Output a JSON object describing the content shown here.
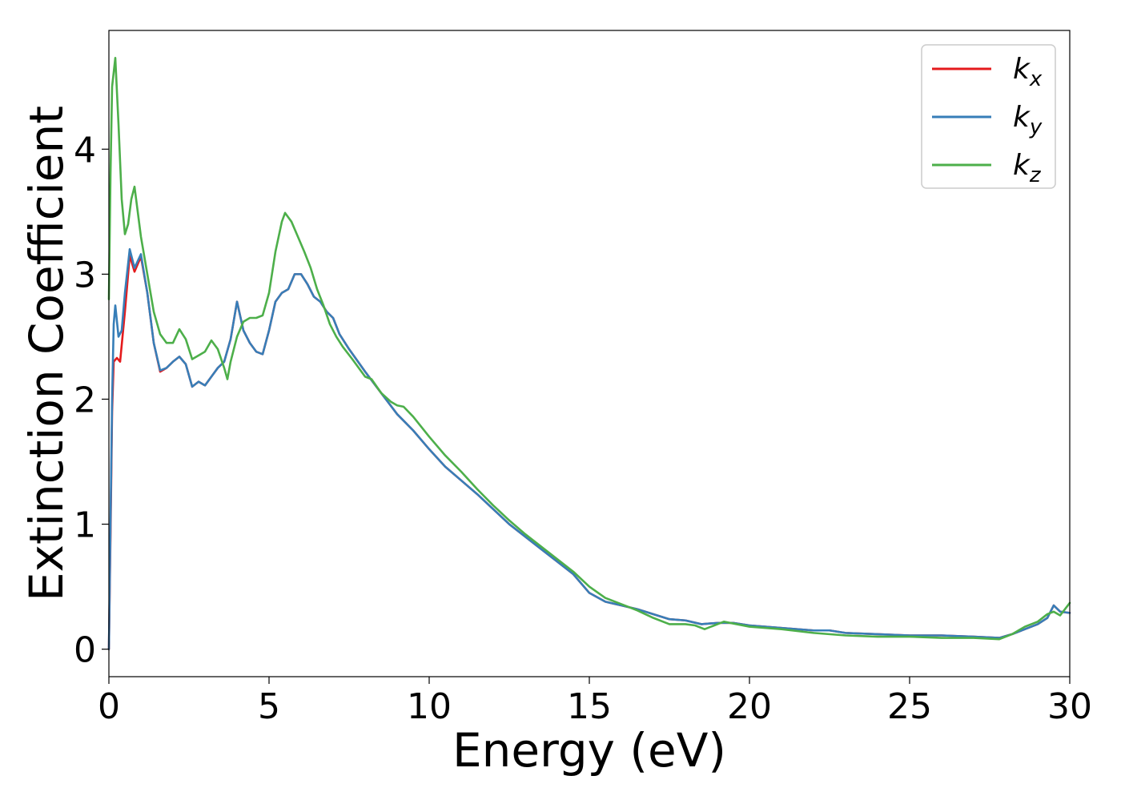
{
  "chart_data": {
    "type": "line",
    "title": "",
    "xlabel": "Energy (eV)",
    "ylabel": "Extinction Coefficient",
    "xlim": [
      0,
      30
    ],
    "ylim": [
      -0.22,
      4.95
    ],
    "xticks": [
      0,
      5,
      10,
      15,
      20,
      25,
      30
    ],
    "xtick_labels": [
      "0",
      "5",
      "10",
      "15",
      "20",
      "25",
      "30"
    ],
    "yticks": [
      0,
      1,
      2,
      3,
      4
    ],
    "ytick_labels": [
      "0",
      "1",
      "2",
      "3",
      "4"
    ],
    "grid": false,
    "legend_placement": "top-right",
    "series": [
      {
        "name": "k_x",
        "label_main": "k",
        "label_sub": "x",
        "color": "#e41a1c",
        "points": [
          [
            0.0,
            0.0
          ],
          [
            0.05,
            0.9
          ],
          [
            0.1,
            1.9
          ],
          [
            0.15,
            2.3
          ],
          [
            0.25,
            2.33
          ],
          [
            0.35,
            2.3
          ],
          [
            0.5,
            2.7
          ],
          [
            0.65,
            3.15
          ],
          [
            0.8,
            3.02
          ],
          [
            1.0,
            3.14
          ],
          [
            1.2,
            2.85
          ],
          [
            1.4,
            2.45
          ],
          [
            1.6,
            2.22
          ],
          [
            1.8,
            2.25
          ],
          [
            2.0,
            2.3
          ],
          [
            2.2,
            2.34
          ],
          [
            2.4,
            2.28
          ],
          [
            2.6,
            2.1
          ],
          [
            2.8,
            2.14
          ],
          [
            3.0,
            2.11
          ],
          [
            3.2,
            2.18
          ],
          [
            3.4,
            2.25
          ],
          [
            3.6,
            2.3
          ],
          [
            3.8,
            2.48
          ],
          [
            4.0,
            2.78
          ],
          [
            4.2,
            2.55
          ],
          [
            4.4,
            2.45
          ],
          [
            4.6,
            2.38
          ],
          [
            4.8,
            2.36
          ],
          [
            5.0,
            2.55
          ],
          [
            5.2,
            2.78
          ],
          [
            5.4,
            2.85
          ],
          [
            5.6,
            2.88
          ],
          [
            5.8,
            3.0
          ],
          [
            6.0,
            3.0
          ],
          [
            6.2,
            2.92
          ],
          [
            6.4,
            2.82
          ],
          [
            6.6,
            2.78
          ],
          [
            6.8,
            2.7
          ],
          [
            7.0,
            2.65
          ],
          [
            7.2,
            2.52
          ],
          [
            7.5,
            2.4
          ],
          [
            8.0,
            2.22
          ],
          [
            8.5,
            2.05
          ],
          [
            9.0,
            1.88
          ],
          [
            9.5,
            1.75
          ],
          [
            10.0,
            1.6
          ],
          [
            10.5,
            1.46
          ],
          [
            11.0,
            1.35
          ],
          [
            11.5,
            1.24
          ],
          [
            12.0,
            1.12
          ],
          [
            12.5,
            1.0
          ],
          [
            13.0,
            0.9
          ],
          [
            13.5,
            0.8
          ],
          [
            14.0,
            0.7
          ],
          [
            14.5,
            0.6
          ],
          [
            15.0,
            0.45
          ],
          [
            15.5,
            0.38
          ],
          [
            16.0,
            0.35
          ],
          [
            16.5,
            0.32
          ],
          [
            17.0,
            0.28
          ],
          [
            17.5,
            0.24
          ],
          [
            18.0,
            0.23
          ],
          [
            18.5,
            0.2
          ],
          [
            19.0,
            0.21
          ],
          [
            19.5,
            0.21
          ],
          [
            20.0,
            0.19
          ],
          [
            21.0,
            0.17
          ],
          [
            22.0,
            0.15
          ],
          [
            22.5,
            0.15
          ],
          [
            23.0,
            0.13
          ],
          [
            24.0,
            0.12
          ],
          [
            25.0,
            0.11
          ],
          [
            26.0,
            0.11
          ],
          [
            27.0,
            0.1
          ],
          [
            27.8,
            0.09
          ],
          [
            28.2,
            0.12
          ],
          [
            28.6,
            0.16
          ],
          [
            29.0,
            0.2
          ],
          [
            29.3,
            0.25
          ],
          [
            29.5,
            0.35
          ],
          [
            29.7,
            0.3
          ],
          [
            30.0,
            0.29
          ]
        ]
      },
      {
        "name": "k_y",
        "label_main": "k",
        "label_sub": "y",
        "color": "#377eb8",
        "points": [
          [
            0.0,
            0.0
          ],
          [
            0.05,
            1.0
          ],
          [
            0.1,
            2.0
          ],
          [
            0.15,
            2.6
          ],
          [
            0.2,
            2.75
          ],
          [
            0.3,
            2.5
          ],
          [
            0.4,
            2.55
          ],
          [
            0.5,
            2.85
          ],
          [
            0.65,
            3.2
          ],
          [
            0.8,
            3.05
          ],
          [
            1.0,
            3.16
          ],
          [
            1.2,
            2.85
          ],
          [
            1.4,
            2.45
          ],
          [
            1.6,
            2.23
          ],
          [
            1.8,
            2.25
          ],
          [
            2.0,
            2.3
          ],
          [
            2.2,
            2.34
          ],
          [
            2.4,
            2.28
          ],
          [
            2.6,
            2.1
          ],
          [
            2.8,
            2.14
          ],
          [
            3.0,
            2.11
          ],
          [
            3.2,
            2.18
          ],
          [
            3.4,
            2.25
          ],
          [
            3.6,
            2.3
          ],
          [
            3.8,
            2.48
          ],
          [
            4.0,
            2.78
          ],
          [
            4.2,
            2.55
          ],
          [
            4.4,
            2.45
          ],
          [
            4.6,
            2.38
          ],
          [
            4.8,
            2.36
          ],
          [
            5.0,
            2.55
          ],
          [
            5.2,
            2.78
          ],
          [
            5.4,
            2.85
          ],
          [
            5.6,
            2.88
          ],
          [
            5.8,
            3.0
          ],
          [
            6.0,
            3.0
          ],
          [
            6.2,
            2.92
          ],
          [
            6.4,
            2.82
          ],
          [
            6.6,
            2.78
          ],
          [
            6.8,
            2.7
          ],
          [
            7.0,
            2.65
          ],
          [
            7.2,
            2.52
          ],
          [
            7.5,
            2.4
          ],
          [
            8.0,
            2.22
          ],
          [
            8.5,
            2.05
          ],
          [
            9.0,
            1.88
          ],
          [
            9.5,
            1.75
          ],
          [
            10.0,
            1.6
          ],
          [
            10.5,
            1.46
          ],
          [
            11.0,
            1.35
          ],
          [
            11.5,
            1.24
          ],
          [
            12.0,
            1.12
          ],
          [
            12.5,
            1.0
          ],
          [
            13.0,
            0.9
          ],
          [
            13.5,
            0.8
          ],
          [
            14.0,
            0.7
          ],
          [
            14.5,
            0.6
          ],
          [
            15.0,
            0.45
          ],
          [
            15.5,
            0.38
          ],
          [
            16.0,
            0.35
          ],
          [
            16.5,
            0.32
          ],
          [
            17.0,
            0.28
          ],
          [
            17.5,
            0.24
          ],
          [
            18.0,
            0.23
          ],
          [
            18.5,
            0.2
          ],
          [
            19.0,
            0.21
          ],
          [
            19.5,
            0.21
          ],
          [
            20.0,
            0.19
          ],
          [
            21.0,
            0.17
          ],
          [
            22.0,
            0.15
          ],
          [
            22.5,
            0.15
          ],
          [
            23.0,
            0.13
          ],
          [
            24.0,
            0.12
          ],
          [
            25.0,
            0.11
          ],
          [
            26.0,
            0.11
          ],
          [
            27.0,
            0.1
          ],
          [
            27.8,
            0.09
          ],
          [
            28.2,
            0.12
          ],
          [
            28.6,
            0.16
          ],
          [
            29.0,
            0.2
          ],
          [
            29.3,
            0.25
          ],
          [
            29.5,
            0.35
          ],
          [
            29.7,
            0.3
          ],
          [
            30.0,
            0.29
          ]
        ]
      },
      {
        "name": "k_z",
        "label_main": "k",
        "label_sub": "z",
        "color": "#4daf4a",
        "points": [
          [
            0.0,
            2.8
          ],
          [
            0.05,
            3.8
          ],
          [
            0.1,
            4.5
          ],
          [
            0.2,
            4.73
          ],
          [
            0.3,
            4.2
          ],
          [
            0.4,
            3.6
          ],
          [
            0.5,
            3.32
          ],
          [
            0.6,
            3.4
          ],
          [
            0.7,
            3.6
          ],
          [
            0.8,
            3.7
          ],
          [
            1.0,
            3.3
          ],
          [
            1.2,
            3.0
          ],
          [
            1.4,
            2.7
          ],
          [
            1.6,
            2.52
          ],
          [
            1.8,
            2.45
          ],
          [
            2.0,
            2.45
          ],
          [
            2.2,
            2.56
          ],
          [
            2.4,
            2.48
          ],
          [
            2.6,
            2.32
          ],
          [
            2.8,
            2.35
          ],
          [
            3.0,
            2.38
          ],
          [
            3.2,
            2.47
          ],
          [
            3.4,
            2.4
          ],
          [
            3.6,
            2.25
          ],
          [
            3.7,
            2.16
          ],
          [
            3.8,
            2.3
          ],
          [
            4.0,
            2.5
          ],
          [
            4.2,
            2.62
          ],
          [
            4.4,
            2.65
          ],
          [
            4.6,
            2.65
          ],
          [
            4.8,
            2.67
          ],
          [
            5.0,
            2.85
          ],
          [
            5.2,
            3.18
          ],
          [
            5.4,
            3.42
          ],
          [
            5.5,
            3.49
          ],
          [
            5.7,
            3.42
          ],
          [
            5.9,
            3.3
          ],
          [
            6.1,
            3.18
          ],
          [
            6.3,
            3.05
          ],
          [
            6.5,
            2.88
          ],
          [
            6.7,
            2.75
          ],
          [
            6.9,
            2.6
          ],
          [
            7.1,
            2.5
          ],
          [
            7.3,
            2.42
          ],
          [
            7.6,
            2.32
          ],
          [
            8.0,
            2.18
          ],
          [
            8.2,
            2.16
          ],
          [
            8.5,
            2.05
          ],
          [
            8.8,
            1.98
          ],
          [
            9.0,
            1.95
          ],
          [
            9.2,
            1.94
          ],
          [
            9.5,
            1.86
          ],
          [
            10.0,
            1.7
          ],
          [
            10.5,
            1.55
          ],
          [
            11.0,
            1.42
          ],
          [
            11.5,
            1.28
          ],
          [
            12.0,
            1.15
          ],
          [
            12.5,
            1.03
          ],
          [
            13.0,
            0.92
          ],
          [
            13.5,
            0.82
          ],
          [
            14.0,
            0.72
          ],
          [
            14.5,
            0.62
          ],
          [
            15.0,
            0.5
          ],
          [
            15.5,
            0.41
          ],
          [
            16.0,
            0.36
          ],
          [
            16.5,
            0.31
          ],
          [
            17.0,
            0.25
          ],
          [
            17.5,
            0.2
          ],
          [
            18.0,
            0.2
          ],
          [
            18.3,
            0.19
          ],
          [
            18.6,
            0.16
          ],
          [
            18.9,
            0.19
          ],
          [
            19.2,
            0.22
          ],
          [
            19.6,
            0.2
          ],
          [
            20.0,
            0.18
          ],
          [
            21.0,
            0.16
          ],
          [
            22.0,
            0.13
          ],
          [
            23.0,
            0.11
          ],
          [
            24.0,
            0.1
          ],
          [
            25.0,
            0.1
          ],
          [
            26.0,
            0.09
          ],
          [
            27.0,
            0.09
          ],
          [
            27.8,
            0.08
          ],
          [
            28.2,
            0.12
          ],
          [
            28.6,
            0.18
          ],
          [
            29.0,
            0.22
          ],
          [
            29.3,
            0.28
          ],
          [
            29.5,
            0.3
          ],
          [
            29.7,
            0.27
          ],
          [
            30.0,
            0.37
          ]
        ]
      }
    ]
  }
}
